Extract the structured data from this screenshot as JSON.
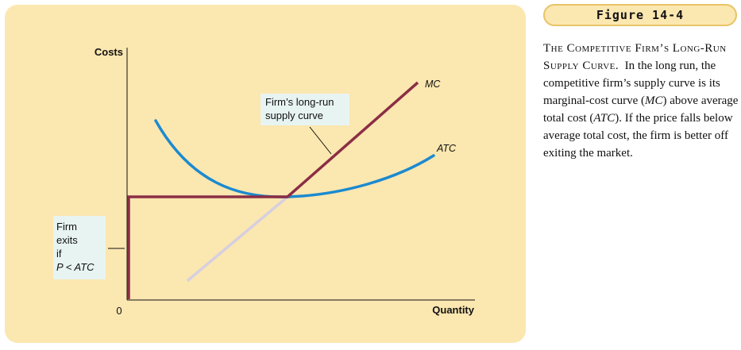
{
  "figure": {
    "tag": "Figure 14-4",
    "caption_heading": "The Competitive Firm’s Long-Run Supply Curve.",
    "caption_parts": [
      "In the long run, the competitive firm’s supply curve is its marginal-cost curve (",
      "MC",
      ") above average total cost (",
      "ATC",
      "). If the price falls below average total cost, the firm is better off exiting the market."
    ]
  },
  "diagram": {
    "y_axis_label": "Costs",
    "x_axis_label": "Quantity",
    "origin_label": "0",
    "curves": {
      "mc_label": "MC",
      "atc_label": "ATC"
    },
    "supply_callout": [
      "Firm’s long-run",
      "supply curve"
    ],
    "exit_callout": {
      "line1": "Firm",
      "line2": "exits",
      "line3": "if",
      "condition": "P < ATC"
    },
    "colors": {
      "supply": "#8b2e45",
      "atc": "#1b8ad0",
      "mc_lower": "#d6cfe0",
      "axis": "#111111"
    }
  }
}
